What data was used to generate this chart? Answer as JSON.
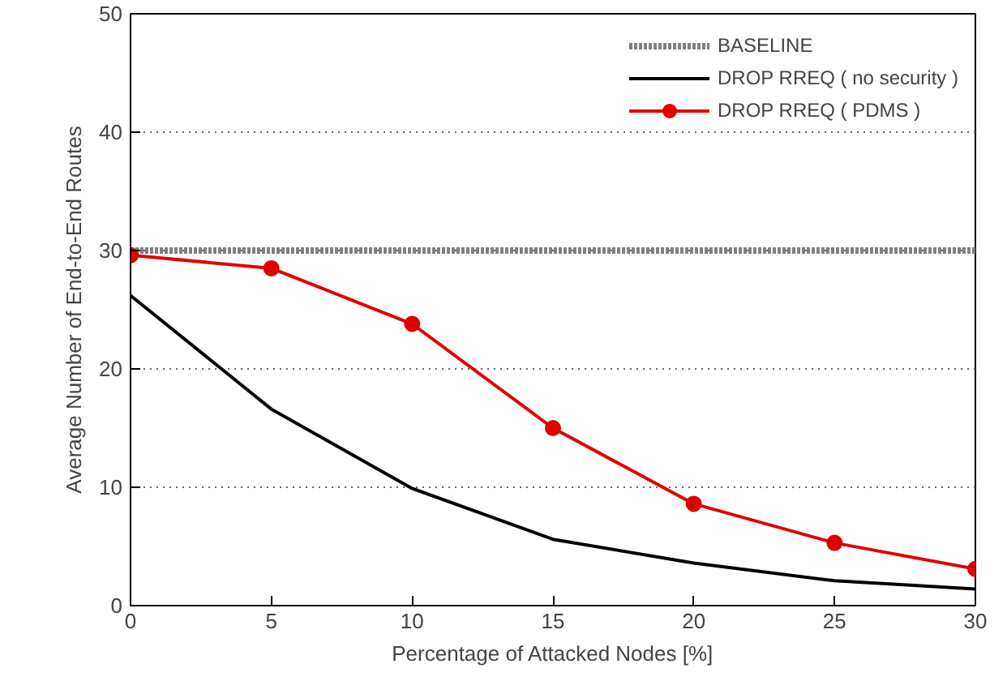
{
  "chart_data": {
    "type": "line",
    "xlabel": "Percentage of Attacked Nodes [%]",
    "ylabel": "Average Number of End-to-End Routes",
    "x": [
      0,
      5,
      10,
      15,
      20,
      25,
      30
    ],
    "xlim": [
      0,
      30
    ],
    "xticks": [
      0,
      5,
      10,
      15,
      20,
      25,
      30
    ],
    "ylim": [
      0,
      50
    ],
    "yticks": [
      0,
      10,
      20,
      30,
      40,
      50
    ],
    "grid": "y",
    "legend": "top right",
    "series": [
      {
        "name": "BASELINE",
        "color": "#808080",
        "values": [
          30,
          30,
          30,
          30,
          30,
          30,
          30
        ],
        "line_style": "dotted",
        "marker": "none"
      },
      {
        "name": "DROP RREQ ( no security )",
        "color": "#000000",
        "values": [
          26.2,
          16.6,
          9.9,
          5.6,
          3.6,
          2.1,
          1.4
        ],
        "line_style": "solid",
        "marker": "none"
      },
      {
        "name": "DROP RREQ ( PDMS )",
        "color": "#e00000",
        "values": [
          29.6,
          28.5,
          23.8,
          15.0,
          8.6,
          5.3,
          3.1
        ],
        "line_style": "solid",
        "marker": "circle"
      }
    ]
  }
}
